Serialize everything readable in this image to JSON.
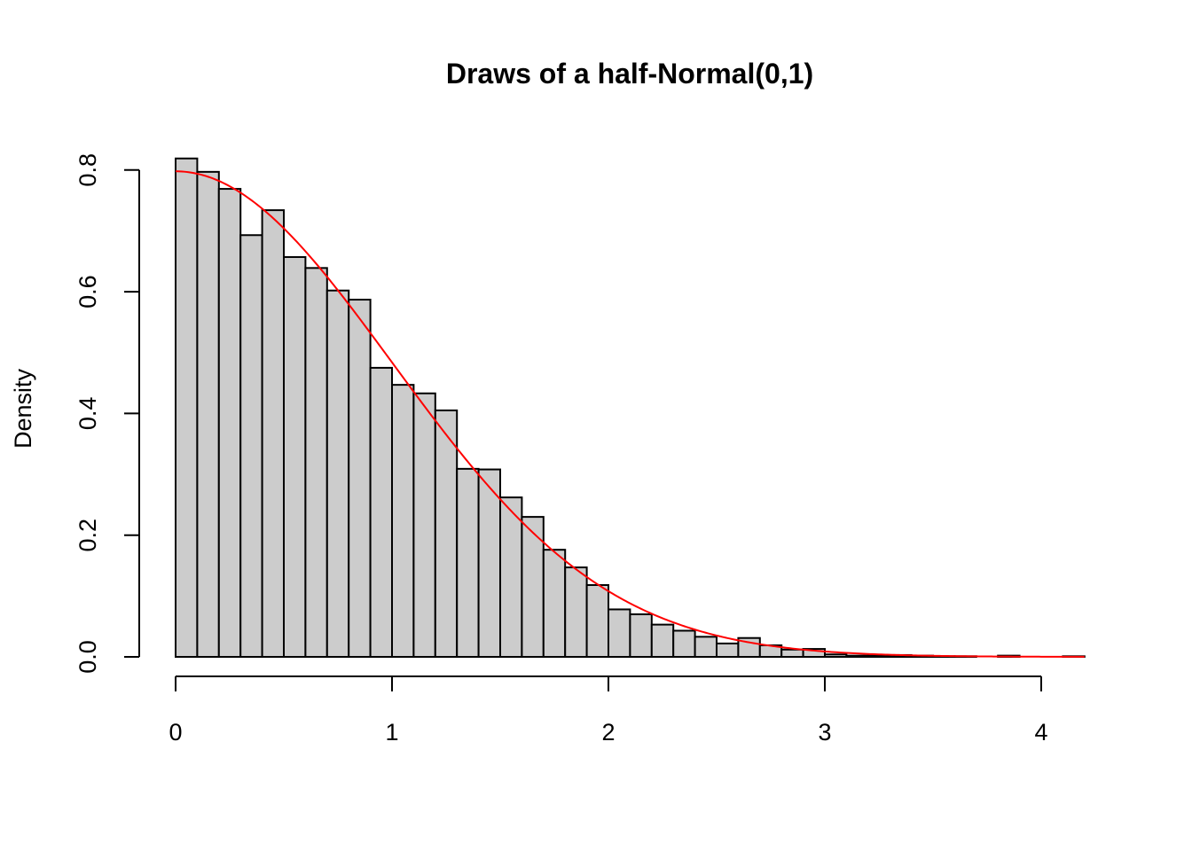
{
  "chart_data": {
    "type": "bar",
    "subtype": "histogram",
    "title": "Draws of a half-Normal(0,1)",
    "xlabel": "",
    "ylabel": "Density",
    "xlim": [
      0,
      4.2
    ],
    "ylim": [
      0,
      0.82
    ],
    "grid": false,
    "legend": null,
    "x_ticks": [
      0,
      1,
      2,
      3,
      4
    ],
    "y_ticks": [
      0.0,
      0.2,
      0.4,
      0.6,
      0.8
    ],
    "x_tick_labels": [
      "0",
      "1",
      "2",
      "3",
      "4"
    ],
    "y_tick_labels": [
      "0.0",
      "0.2",
      "0.4",
      "0.6",
      "0.8"
    ],
    "bin_width": 0.1,
    "bin_edges": [
      0.0,
      0.1,
      0.2,
      0.3,
      0.4,
      0.5,
      0.6,
      0.7,
      0.8,
      0.9,
      1.0,
      1.1,
      1.2,
      1.3,
      1.4,
      1.5,
      1.6,
      1.7,
      1.8,
      1.9,
      2.0,
      2.1,
      2.2,
      2.3,
      2.4,
      2.5,
      2.6,
      2.7,
      2.8,
      2.9,
      3.0,
      3.1,
      3.2,
      3.3,
      3.4,
      3.5,
      3.6,
      3.7,
      3.8,
      3.9,
      4.0,
      4.1,
      4.2
    ],
    "values": [
      0.819,
      0.797,
      0.769,
      0.693,
      0.734,
      0.657,
      0.639,
      0.602,
      0.587,
      0.475,
      0.447,
      0.433,
      0.405,
      0.309,
      0.308,
      0.262,
      0.23,
      0.176,
      0.147,
      0.118,
      0.078,
      0.07,
      0.053,
      0.043,
      0.033,
      0.022,
      0.031,
      0.019,
      0.012,
      0.013,
      0.004,
      0.002,
      0.002,
      0.003,
      0.002,
      0.001,
      0.001,
      0.0,
      0.002,
      0.0,
      0.0,
      0.001
    ],
    "bar_fill": "#cccccc",
    "bar_stroke": "#000000",
    "overlay": {
      "type": "line",
      "name": "half-Normal(0,1) density",
      "function": "2*dnorm(x)",
      "color": "#ff0000",
      "x_range": [
        0,
        4.2
      ]
    }
  }
}
